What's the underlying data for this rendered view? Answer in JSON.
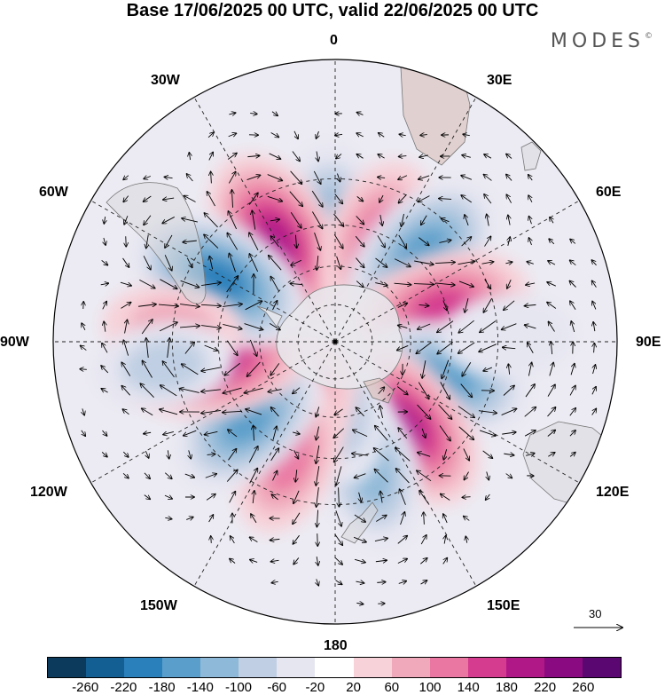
{
  "title": "Base 17/06/2025 00 UTC, valid 22/06/2025 00 UTC",
  "brand": "MODES",
  "brand_mark": "©",
  "longitude_labels": {
    "lon_0": "0",
    "lon_30E": "30E",
    "lon_60E": "60E",
    "lon_90E": "90E",
    "lon_120E": "120E",
    "lon_150E": "150E",
    "lon_180": "180",
    "lon_150W": "150W",
    "lon_120W": "120W",
    "lon_90W": "90W",
    "lon_60W": "60W",
    "lon_30W": "30W"
  },
  "projection": "south-polar-stereographic",
  "vector_scale": {
    "label": "30"
  },
  "colorbar": {
    "ticks": [
      "-260",
      "-220",
      "-180",
      "-140",
      "-100",
      "-60",
      "-20",
      "20",
      "60",
      "100",
      "140",
      "180",
      "220",
      "260"
    ],
    "colors": [
      "#0b3a5c",
      "#135f93",
      "#2a80bb",
      "#5a9fcb",
      "#8fb9d8",
      "#c0cfe3",
      "#e6e6f1",
      "#ffffff",
      "#f7d2d9",
      "#f0a9ba",
      "#ea77a1",
      "#d53b8e",
      "#b01887",
      "#8a0b81",
      "#5a0772"
    ]
  },
  "anomaly_centers": [
    {
      "sign": "negative",
      "lon": "2W",
      "lat": -45,
      "value": -140
    },
    {
      "sign": "positive",
      "lon": "30W",
      "lat": -45,
      "value": 200
    },
    {
      "sign": "positive",
      "lon": "22E",
      "lat": -47,
      "value": 140
    },
    {
      "sign": "negative",
      "lon": "45E",
      "lat": -43,
      "value": -180
    },
    {
      "sign": "positive",
      "lon": "73E",
      "lat": -47,
      "value": 180
    },
    {
      "sign": "negative",
      "lon": "108E",
      "lat": -45,
      "value": -160
    },
    {
      "sign": "positive",
      "lon": "140E",
      "lat": -48,
      "value": 200
    },
    {
      "sign": "negative",
      "lon": "165E",
      "lat": -40,
      "value": -140
    },
    {
      "sign": "negative",
      "lon": "175E",
      "lat": -62,
      "value": -100
    },
    {
      "sign": "positive",
      "lon": "155W",
      "lat": -62,
      "value": 100
    },
    {
      "sign": "positive",
      "lon": "158W",
      "lat": -42,
      "value": 120
    },
    {
      "sign": "negative",
      "lon": "132W",
      "lat": -45,
      "value": -160
    },
    {
      "sign": "positive",
      "lon": "97W",
      "lat": -42,
      "value": 220
    },
    {
      "sign": "negative",
      "lon": "62W",
      "lat": -40,
      "value": -200
    },
    {
      "sign": "positive",
      "lon": "85W",
      "lat": -30,
      "value": 80
    },
    {
      "sign": "negative",
      "lon": "98W",
      "lat": -27,
      "value": -80
    },
    {
      "sign": "negative",
      "lon": "88E",
      "lat": -27,
      "value": -60
    }
  ]
}
